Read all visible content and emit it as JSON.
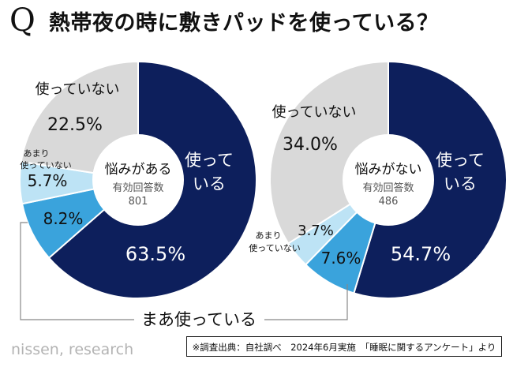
{
  "header": {
    "q_mark": "Q",
    "title": "熱帯夜の時に敷きパッドを使っている？"
  },
  "colors": {
    "use": "#0d1f5c",
    "sometimes": "#3aa3dc",
    "rarely": "#bde3f5",
    "not_use": "#d9d9d9"
  },
  "chart_data": [
    {
      "type": "pie",
      "variant": "donut",
      "center_title": "悩みがある",
      "center_sub1": "有効回答数",
      "center_sub2": "801",
      "series": [
        {
          "name": "使っている",
          "value": 63.5,
          "label": "63.5%"
        },
        {
          "name": "まあ使っている",
          "value": 8.2,
          "label": "8.2%"
        },
        {
          "name": "あまり使っていない",
          "value": 5.7,
          "label": "5.7%"
        },
        {
          "name": "使っていない",
          "value": 22.5,
          "label": "22.5%"
        }
      ]
    },
    {
      "type": "pie",
      "variant": "donut",
      "center_title": "悩みがない",
      "center_sub1": "有効回答数",
      "center_sub2": "486",
      "series": [
        {
          "name": "使っている",
          "value": 54.7,
          "label": "54.7%"
        },
        {
          "name": "まあ使っている",
          "value": 7.6,
          "label": "7.6%"
        },
        {
          "name": "あまり使っていない",
          "value": 3.7,
          "label": "3.7%"
        },
        {
          "name": "使っていない",
          "value": 34.0,
          "label": "34.0%"
        }
      ]
    }
  ],
  "labels": {
    "use_line1": "使って",
    "use_line2": "いる",
    "rarely_line1": "あまり",
    "rarely_line2": "使っていない",
    "not_use": "使っていない",
    "sometimes": "まあ使っている"
  },
  "footer": {
    "brand": "nissen, research",
    "note": "※調査出典：自社調べ　2024年6月実施　「睡眠に関するアンケート」より"
  }
}
